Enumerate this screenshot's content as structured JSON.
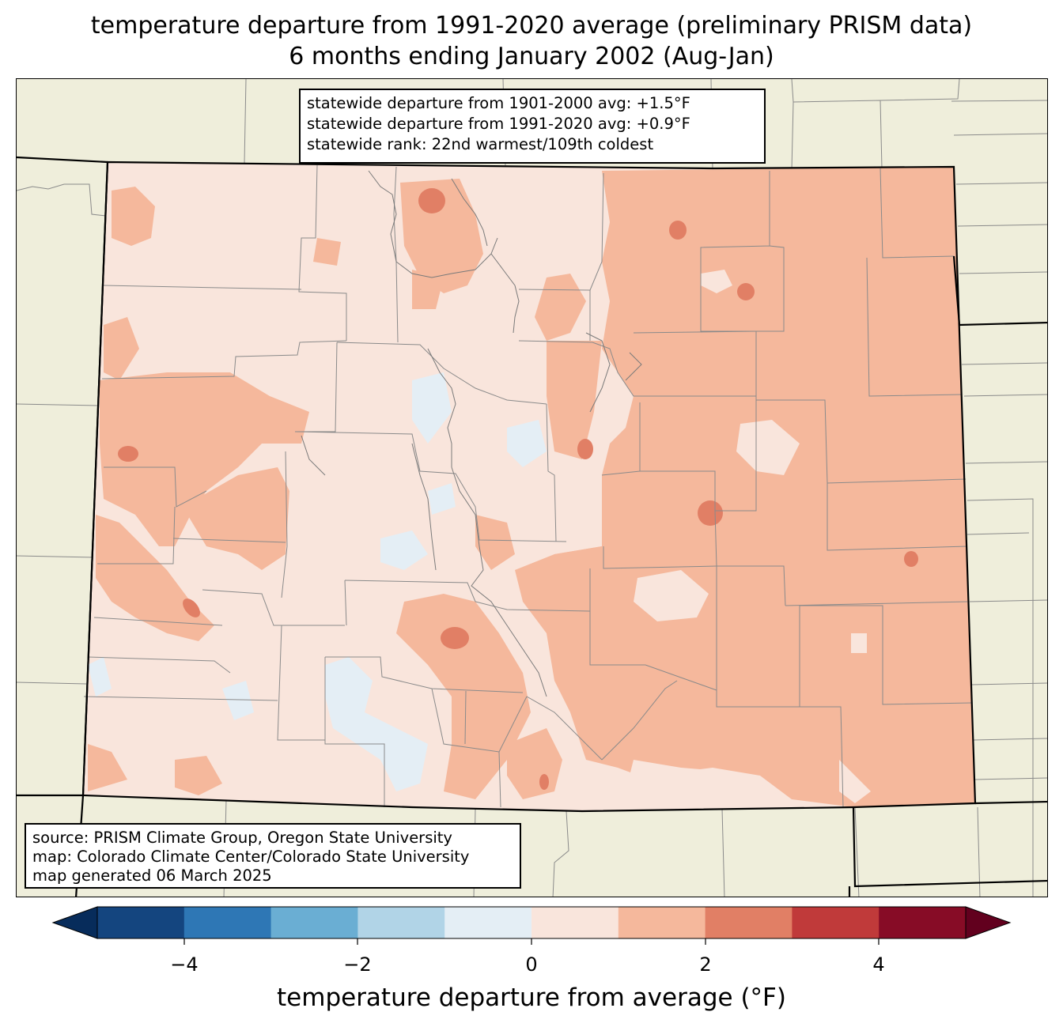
{
  "title": {
    "line1": "temperature departure from 1991-2020 average (preliminary PRISM data)",
    "line2": "6 months ending January 2002 (Aug-Jan)"
  },
  "stats": {
    "line1": "statewide departure from 1901-2000 avg: +1.5°F",
    "line2": "statewide departure from 1991-2020 avg: +0.9°F",
    "line3": "statewide rank: 22nd warmest/109th coldest"
  },
  "source": {
    "line1": "source: PRISM Climate Group, Oregon State University",
    "line2": "map: Colorado Climate Center/Colorado State University",
    "line3": "map generated 06 March 2025"
  },
  "colorbar": {
    "label": "temperature departure from average (°F)",
    "ticks": [
      "−4",
      "−2",
      "0",
      "2",
      "4"
    ],
    "bins": [
      -5,
      -4,
      -3,
      -2,
      -1,
      0,
      1,
      2,
      3,
      4,
      5
    ],
    "colors": [
      "#14457f",
      "#2e77b5",
      "#6aaed3",
      "#b1d4e7",
      "#e4eef5",
      "#f9e5dc",
      "#f5b89c",
      "#e17f65",
      "#c03a3a",
      "#870c26"
    ],
    "under_color": "#072c5b",
    "over_color": "#62001e"
  },
  "map": {
    "land_color": "#efeedb",
    "state_fill_base": "#f9e5dc",
    "state_region": "Colorado"
  }
}
